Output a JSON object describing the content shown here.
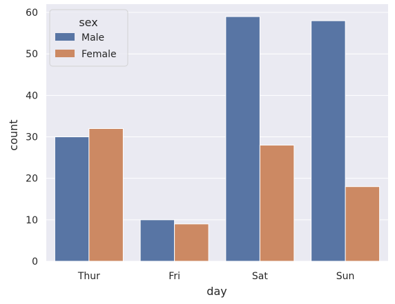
{
  "chart_data": {
    "type": "bar",
    "categories": [
      "Thur",
      "Fri",
      "Sat",
      "Sun"
    ],
    "series": [
      {
        "name": "Male",
        "values": [
          30,
          10,
          59,
          58
        ],
        "color": "#5875a4"
      },
      {
        "name": "Female",
        "values": [
          32,
          9,
          28,
          18
        ],
        "color": "#cc8963"
      }
    ],
    "xlabel": "day",
    "ylabel": "count",
    "ylim": [
      0,
      62
    ],
    "yticks": [
      0,
      10,
      20,
      30,
      40,
      50,
      60
    ],
    "grid": true,
    "legend": {
      "title": "sex",
      "placement": "top-left"
    },
    "background": "#eaeaf2"
  }
}
